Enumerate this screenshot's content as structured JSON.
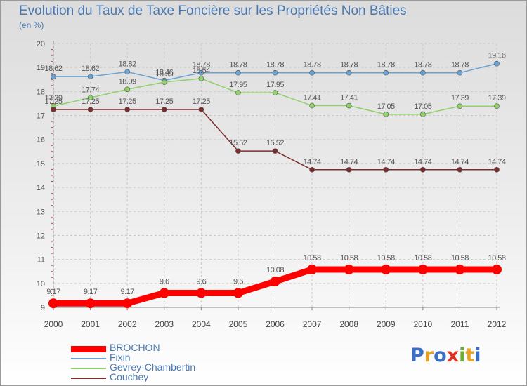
{
  "title": "Evolution du Taux de Taxe Foncière sur les Propriétés Non Bâties",
  "unit_label": "(en %)",
  "logo_text": "Proxiti",
  "chart_data": {
    "type": "line",
    "title": "Evolution du Taux de Taxe Foncière sur les Propriétés Non Bâties",
    "ylabel": "(en %)",
    "xlabel": "",
    "x": [
      "2000",
      "2001",
      "2002",
      "2003",
      "2004",
      "2005",
      "2006",
      "2007",
      "2008",
      "2009",
      "2010",
      "2011",
      "2012"
    ],
    "ylim": [
      9,
      20
    ],
    "yticks": [
      "9",
      "10",
      "11",
      "12",
      "13",
      "14",
      "15",
      "16",
      "17",
      "18",
      "19",
      "20"
    ],
    "grid": true,
    "legend_position": "bottom-left",
    "series": [
      {
        "name": "BROCHON",
        "color": "#ff0000",
        "emphasis": true,
        "values": [
          9.17,
          9.17,
          9.17,
          9.6,
          9.6,
          9.6,
          10.08,
          10.58,
          10.58,
          10.58,
          10.58,
          10.58,
          10.58
        ],
        "labels": [
          "9.17",
          "9.17",
          "9.17",
          "9.6",
          "9.6",
          "9.6",
          "10.08",
          "10.58",
          "10.58",
          "10.58",
          "10.58",
          "10.58",
          "10.58"
        ]
      },
      {
        "name": "Fixin",
        "color": "#6aa3d5",
        "values": [
          18.62,
          18.62,
          18.82,
          18.46,
          18.78,
          18.78,
          18.78,
          18.78,
          18.78,
          18.78,
          18.78,
          18.78,
          19.16
        ],
        "labels": [
          "18.62",
          "18.62",
          "18.82",
          "18.46",
          "18.78",
          "18.78",
          "18.78",
          "18.78",
          "18.78",
          "18.78",
          "18.78",
          "18.78",
          "19.16"
        ]
      },
      {
        "name": "Gevrey-Chambertin",
        "color": "#8fd16a",
        "values": [
          17.39,
          17.74,
          18.09,
          18.39,
          18.54,
          17.95,
          17.95,
          17.41,
          17.41,
          17.05,
          17.05,
          17.39,
          17.39
        ],
        "labels": [
          "17.39",
          "17.74",
          "18.09",
          "18.39",
          "18.54",
          "17.95",
          "17.95",
          "17.41",
          "17.41",
          "17.05",
          "17.05",
          "17.39",
          "17.39"
        ]
      },
      {
        "name": "Couchey",
        "color": "#7b2d2d",
        "values": [
          17.25,
          17.25,
          17.25,
          17.25,
          17.25,
          15.52,
          15.52,
          14.74,
          14.74,
          14.74,
          14.74,
          14.74,
          14.74
        ],
        "labels": [
          "17.25",
          "17.25",
          "17.25",
          "17.25",
          "17.25",
          "15.52",
          "15.52",
          "14.74",
          "14.74",
          "14.74",
          "14.74",
          "14.74",
          "14.74"
        ]
      }
    ]
  },
  "logo_colors": [
    "#3b6fc4",
    "#e8a020",
    "#3b6fc4",
    "#e03020",
    "#6ab030",
    "#e8a020",
    "#3b6fc4"
  ]
}
